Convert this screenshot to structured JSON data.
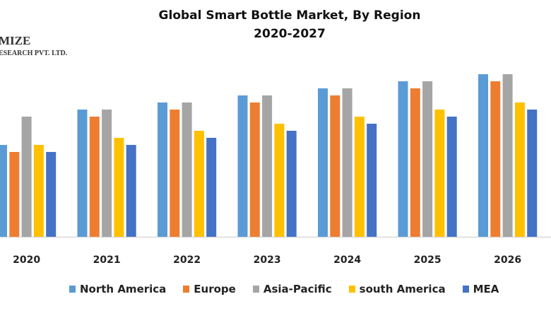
{
  "logo": {
    "line1": "MIZE",
    "line2": "ESEARCH PVT. LTD."
  },
  "chart_data": {
    "type": "bar",
    "title": "Global Smart Bottle Market, By Region",
    "subtitle": "2020-2027",
    "xlabel": "",
    "ylabel": "",
    "grid": false,
    "legend_position": "bottom",
    "ylim": [
      0,
      24
    ],
    "categories": [
      "2020",
      "2021",
      "2022",
      "2023",
      "2024",
      "2025",
      "2026"
    ],
    "series": [
      {
        "name": "North America",
        "color": "#5B9BD5",
        "values": [
          13,
          18,
          19,
          20,
          21,
          22,
          23
        ]
      },
      {
        "name": "Europe",
        "color": "#ED7D31",
        "values": [
          12,
          17,
          18,
          19,
          20,
          21,
          22
        ]
      },
      {
        "name": "Asia-Pacific",
        "color": "#A5A5A5",
        "values": [
          17,
          18,
          19,
          20,
          21,
          22,
          23
        ]
      },
      {
        "name": "south America",
        "color": "#FFC000",
        "values": [
          13,
          14,
          15,
          16,
          17,
          18,
          19
        ]
      },
      {
        "name": "MEA",
        "color": "#4472C4",
        "values": [
          12,
          13,
          14,
          15,
          16,
          17,
          18
        ]
      }
    ]
  }
}
